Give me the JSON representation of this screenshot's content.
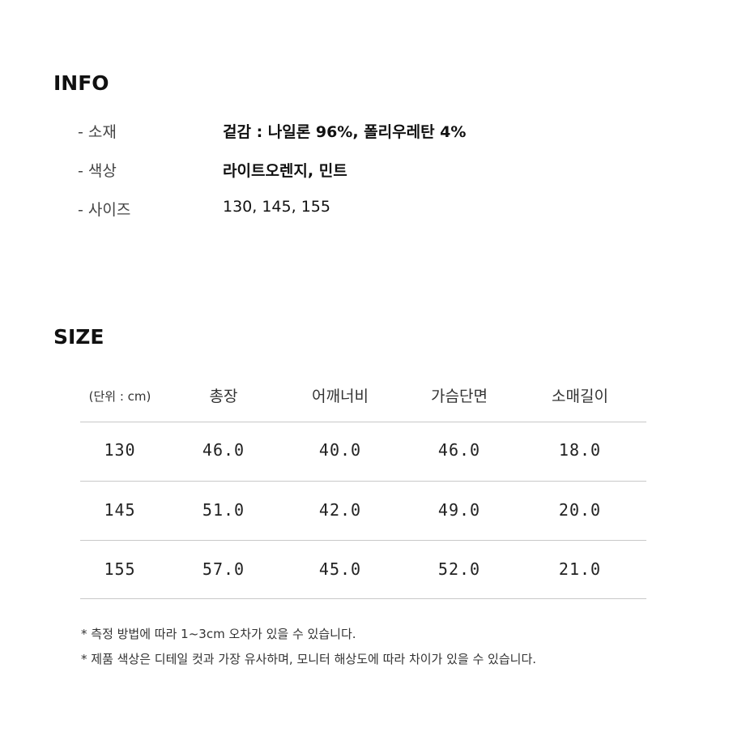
{
  "info": {
    "title": "INFO",
    "rows": [
      {
        "label": "- 소재",
        "value": "겉감 : 나일론 96%, 폴리우레탄 4%"
      },
      {
        "label": "- 색상",
        "value": "라이트오렌지, 민트"
      },
      {
        "label": "- 사이즈",
        "value": "130, 145, 155"
      }
    ]
  },
  "size": {
    "title": "SIZE",
    "headers": [
      "(단위 : cm)",
      "총장",
      "어깨너비",
      "가슴단면",
      "소매길이"
    ],
    "rows": [
      [
        "130",
        "46.0",
        "40.0",
        "46.0",
        "18.0"
      ],
      [
        "145",
        "51.0",
        "42.0",
        "49.0",
        "20.0"
      ],
      [
        "155",
        "57.0",
        "45.0",
        "52.0",
        "21.0"
      ]
    ]
  },
  "notes": [
    "* 측정 방법에 따라 1~3cm 오차가 있을 수 있습니다.",
    "* 제품 색상은 디테일 컷과 가장 유사하며, 모니터 해상도에 따라 차이가 있을 수 있습니다."
  ]
}
